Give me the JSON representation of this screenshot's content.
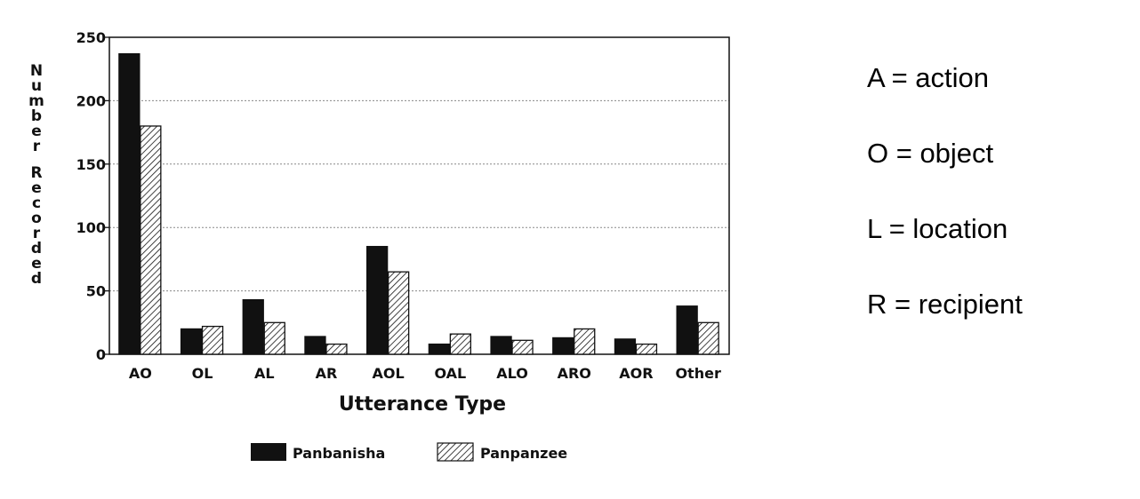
{
  "chart_data": {
    "type": "bar",
    "categories": [
      "AO",
      "OL",
      "AL",
      "AR",
      "AOL",
      "OAL",
      "ALO",
      "ARO",
      "AOR",
      "Other"
    ],
    "series": [
      {
        "name": "Panbanisha",
        "values": [
          237,
          20,
          43,
          14,
          85,
          8,
          14,
          13,
          12,
          38
        ]
      },
      {
        "name": "Panpanzee",
        "values": [
          180,
          22,
          25,
          8,
          65,
          16,
          11,
          20,
          8,
          25
        ]
      }
    ],
    "xlabel": "Utterance Type",
    "ylabel": "Number Recorded",
    "ylim": [
      0,
      250
    ],
    "yticks": [
      "0",
      "50",
      "100",
      "150",
      "200",
      "250"
    ],
    "grid": true,
    "legend_position": "bottom"
  },
  "key": [
    "A = action",
    "O = object",
    "L = location",
    "R = recipient"
  ],
  "colors": {
    "panbanisha_fill": "#111111",
    "panpanzee_hatch": "#111111",
    "background": "#ffffff"
  }
}
